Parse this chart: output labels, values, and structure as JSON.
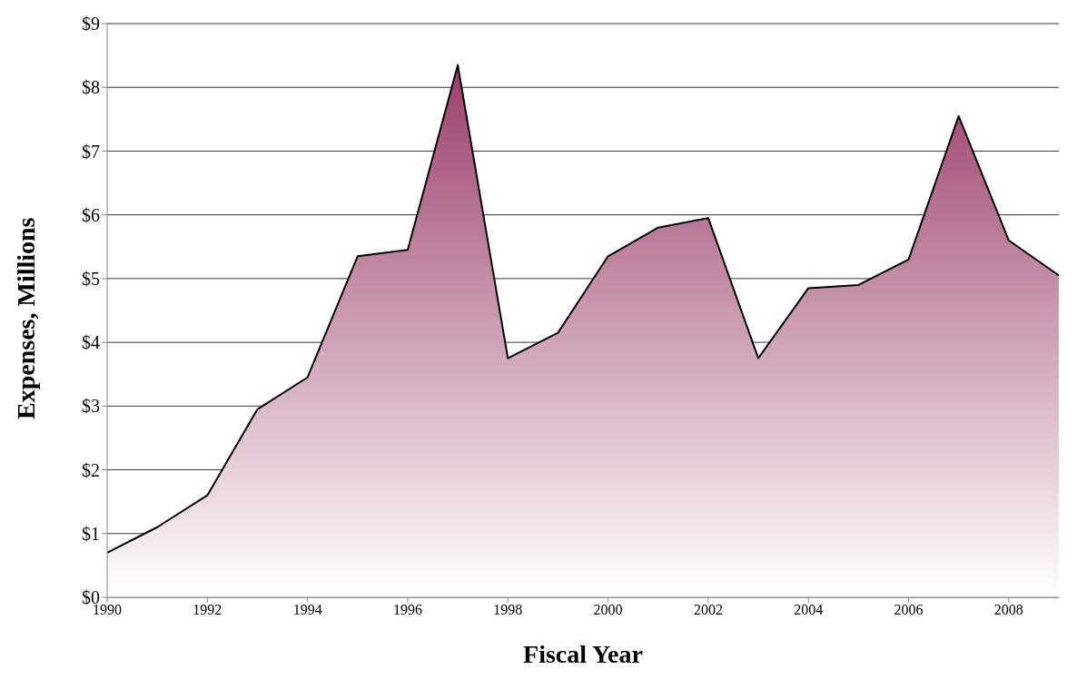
{
  "chart_data": {
    "type": "area",
    "xlabel": "Fiscal Year",
    "ylabel": "Expenses, Millions",
    "x": [
      1990,
      1991,
      1992,
      1993,
      1994,
      1995,
      1996,
      1997,
      1998,
      1999,
      2000,
      2001,
      2002,
      2003,
      2004,
      2005,
      2006,
      2007,
      2008,
      2009
    ],
    "series": [
      {
        "color": "#9b3f6b",
        "values": [
          0.7,
          1.1,
          1.6,
          2.95,
          3.45,
          5.35,
          5.45,
          8.35,
          3.75,
          4.15,
          5.35,
          5.8,
          5.95,
          3.75,
          4.85,
          4.9,
          5.3,
          7.55,
          5.6,
          5.05
        ]
      }
    ],
    "xlim": [
      1990,
      2009
    ],
    "xticks": [
      1990,
      1992,
      1994,
      1996,
      1998,
      2000,
      2002,
      2004,
      2006,
      2008
    ],
    "ylim": [
      0,
      9
    ],
    "yticks": [
      {
        "value": 0,
        "label": "$0"
      },
      {
        "value": 1,
        "label": "$1"
      },
      {
        "value": 2,
        "label": "$2"
      },
      {
        "value": 3,
        "label": "$3"
      },
      {
        "value": 4,
        "label": "$4"
      },
      {
        "value": 5,
        "label": "$5"
      },
      {
        "value": 6,
        "label": "$6"
      },
      {
        "value": 7,
        "label": "$7"
      },
      {
        "value": 8,
        "label": "$8"
      },
      {
        "value": 9,
        "label": "$9"
      }
    ],
    "grid": "y"
  }
}
